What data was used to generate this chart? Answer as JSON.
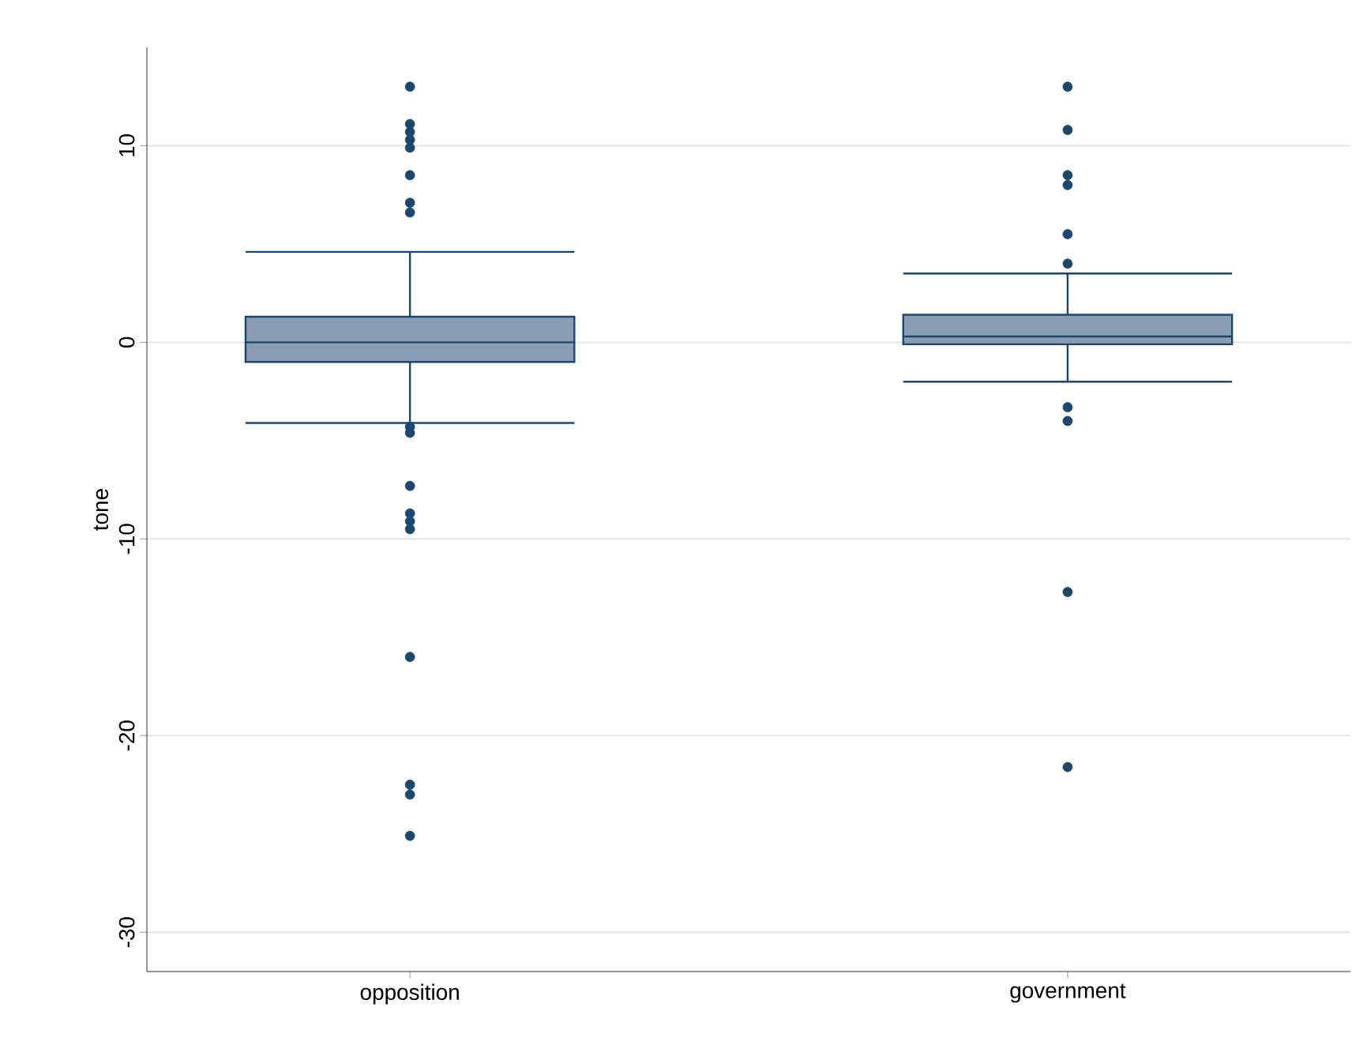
{
  "chart_data": {
    "type": "box",
    "ylabel": "tone",
    "categories": [
      "opposition",
      "government"
    ],
    "boxes": [
      {
        "low": -4.1,
        "q1": -1.0,
        "median": 0.0,
        "q3": 1.3,
        "high": 4.6,
        "outliers": [
          13.0,
          11.1,
          10.7,
          10.3,
          9.9,
          8.5,
          7.1,
          6.6,
          -4.3,
          -4.6,
          -7.3,
          -8.7,
          -9.1,
          -9.5,
          -16.0,
          -22.5,
          -23.0,
          -25.1
        ]
      },
      {
        "low": -2.0,
        "q1": -0.1,
        "median": 0.3,
        "q3": 1.4,
        "high": 3.5,
        "outliers": [
          13.0,
          10.8,
          8.5,
          8.0,
          5.5,
          4.0,
          -3.3,
          -4.0,
          -12.7,
          -21.6
        ]
      }
    ],
    "color": "#8a9db3",
    "grid": "y",
    "ylim": [
      -32,
      15
    ],
    "yticks": [
      -30,
      -20,
      -10,
      0,
      10
    ]
  }
}
